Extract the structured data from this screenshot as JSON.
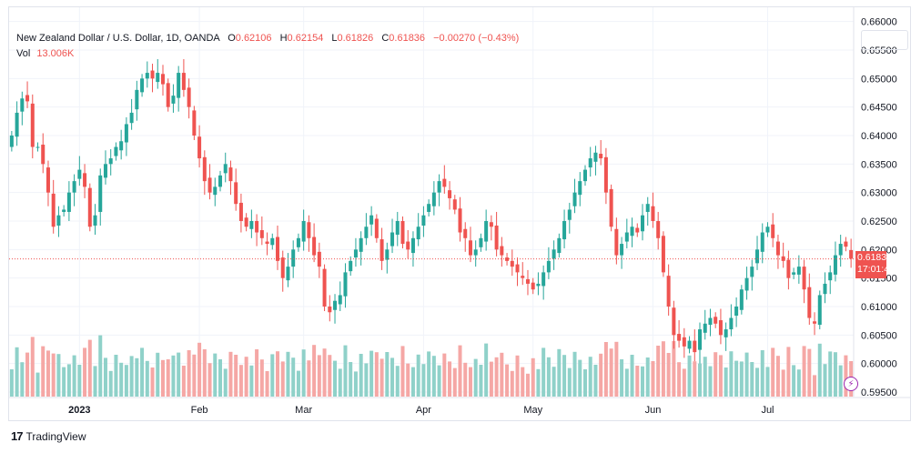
{
  "legend": {
    "symbol": "New Zealand Dollar / U.S. Dollar, 1D, OANDA",
    "o_key": "O",
    "o_val": "0.62106",
    "h_key": "H",
    "h_val": "0.62154",
    "l_key": "L",
    "l_val": "0.61826",
    "c_key": "C",
    "c_val": "0.61836",
    "change": "−0.00270 (−0.43%)",
    "vol_key": "Vol",
    "vol_val": "13.006K"
  },
  "price_label": {
    "price": "0.61836",
    "countdown": "17:01:43"
  },
  "brand": {
    "logo": "17",
    "name": "TradingView"
  },
  "colors": {
    "up": "#26a69a",
    "down": "#ef5350",
    "up_vol": "#8fd1c9",
    "down_vol": "#f5a7a5",
    "grid": "#f0f3fa",
    "text": "#131722"
  },
  "chart_data": {
    "type": "candlestick",
    "y_ticks": [
      "0.66000",
      "0.65500",
      "0.65000",
      "0.64500",
      "0.64000",
      "0.63500",
      "0.63000",
      "0.62500",
      "0.62000",
      "0.61500",
      "0.61000",
      "0.60500",
      "0.60000",
      "0.59500"
    ],
    "ylim": [
      0.5942,
      0.6625
    ],
    "x_labels": [
      {
        "label": "2023",
        "index": 13
      },
      {
        "label": "Feb",
        "index": 36
      },
      {
        "label": "Mar",
        "index": 56
      },
      {
        "label": "Apr",
        "index": 79
      },
      {
        "label": "May",
        "index": 100
      },
      {
        "label": "Jun",
        "index": 123
      },
      {
        "label": "Jul",
        "index": 145
      }
    ],
    "last_price": 0.61836,
    "closes": [
      0.64,
      0.644,
      0.6465,
      0.646,
      0.638,
      0.638,
      0.635,
      0.63,
      0.624,
      0.626,
      0.627,
      0.63,
      0.632,
      0.634,
      0.631,
      0.624,
      0.626,
      0.633,
      0.635,
      0.636,
      0.638,
      0.639,
      0.642,
      0.644,
      0.648,
      0.65,
      0.651,
      0.65,
      0.651,
      0.649,
      0.645,
      0.647,
      0.651,
      0.648,
      0.645,
      0.64,
      0.636,
      0.632,
      0.63,
      0.631,
      0.633,
      0.635,
      0.632,
      0.628,
      0.625,
      0.624,
      0.625,
      0.623,
      0.622,
      0.621,
      0.622,
      0.618,
      0.615,
      0.617,
      0.62,
      0.622,
      0.625,
      0.622,
      0.619,
      0.617,
      0.61,
      0.609,
      0.611,
      0.612,
      0.616,
      0.618,
      0.62,
      0.622,
      0.624,
      0.626,
      0.622,
      0.618,
      0.62,
      0.623,
      0.625,
      0.621,
      0.62,
      0.622,
      0.624,
      0.626,
      0.628,
      0.63,
      0.632,
      0.631,
      0.629,
      0.627,
      0.623,
      0.622,
      0.619,
      0.62,
      0.622,
      0.625,
      0.624,
      0.62,
      0.619,
      0.618,
      0.617,
      0.616,
      0.615,
      0.614,
      0.613,
      0.614,
      0.616,
      0.618,
      0.62,
      0.622,
      0.625,
      0.627,
      0.63,
      0.632,
      0.634,
      0.636,
      0.637,
      0.636,
      0.63,
      0.624,
      0.619,
      0.621,
      0.623,
      0.624,
      0.623,
      0.626,
      0.628,
      0.625,
      0.622,
      0.616,
      0.61,
      0.605,
      0.604,
      0.603,
      0.604,
      0.602,
      0.606,
      0.607,
      0.608,
      0.607,
      0.605,
      0.606,
      0.608,
      0.61,
      0.613,
      0.615,
      0.617,
      0.62,
      0.623,
      0.624,
      0.622,
      0.619,
      0.618,
      0.615,
      0.616,
      0.617,
      0.613,
      0.608,
      0.607,
      0.612,
      0.614,
      0.616,
      0.619,
      0.621,
      0.6205,
      0.6184
    ]
  }
}
